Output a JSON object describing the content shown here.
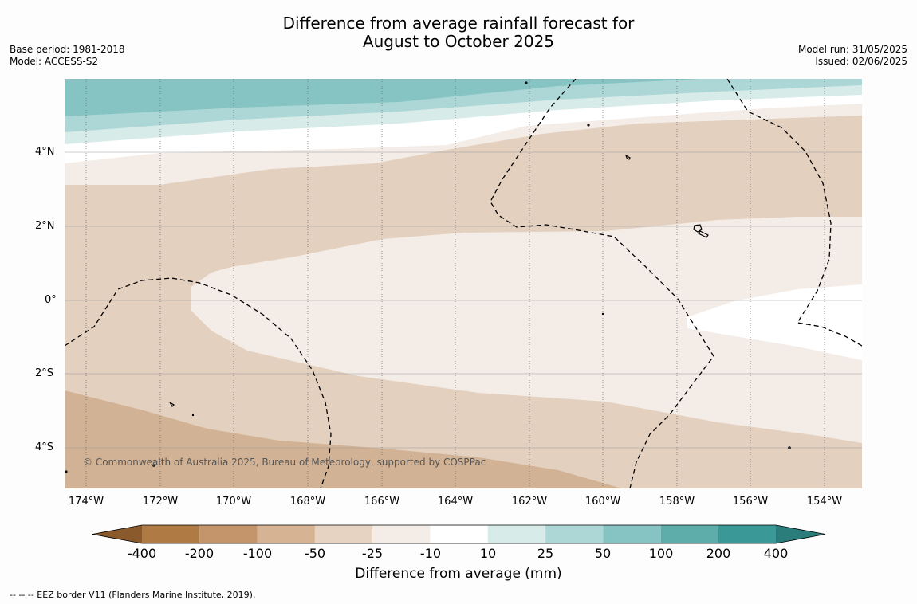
{
  "header": {
    "title_line1": "Difference from average rainfall forecast for",
    "title_line2": "August to October 2025",
    "base_period": "Base period: 1981-2018",
    "model": "Model: ACCESS-S2",
    "model_run": "Model run: 31/05/2025",
    "issued": "Issued: 02/06/2025"
  },
  "map": {
    "lat_labels": [
      "4°N",
      "2°N",
      "0°",
      "2°S",
      "4°S"
    ],
    "lon_labels": [
      "174°W",
      "172°W",
      "170°W",
      "168°W",
      "166°W",
      "164°W",
      "162°W",
      "160°W",
      "158°W",
      "156°W",
      "154°W"
    ],
    "copyright": "© Commonwealth of Australia 2025, Bureau of Meteorology, supported by COSPPac"
  },
  "colorbar": {
    "labels": [
      "-400",
      "-200",
      "-100",
      "-50",
      "-25",
      "-10",
      "10",
      "25",
      "50",
      "100",
      "200",
      "400"
    ],
    "colors": [
      "#8a5a2c",
      "#b07a45",
      "#c4956a",
      "#d6b392",
      "#e6d3c1",
      "#f4ede7",
      "#ffffff",
      "#d7ebe9",
      "#add7d6",
      "#85c4c2",
      "#5fadab",
      "#3a9896",
      "#2a7d7b"
    ],
    "title": "Difference from average (mm)"
  },
  "footer": {
    "eez_note": "--  --  -- EEZ border V11 (Flanders Marine Institute, 2019)."
  }
}
